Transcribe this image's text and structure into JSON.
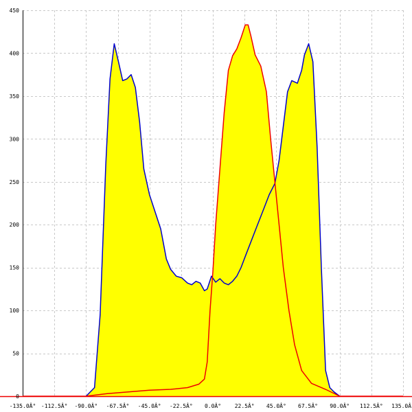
{
  "chart_data": {
    "type": "area",
    "title": "",
    "xlabel": "",
    "ylabel": "",
    "xlim": [
      -135,
      135
    ],
    "ylim": [
      0,
      450
    ],
    "grid": true,
    "x_ticks": [
      -135,
      -112.5,
      -90,
      -67.5,
      -45,
      -22.5,
      0,
      22.5,
      45,
      67.5,
      90,
      112.5,
      135
    ],
    "x_tick_labels": [
      "-135.0Â°",
      "-112.5Â°",
      "-90.0Â°",
      "-67.5Â°",
      "-45.0Â°",
      "-22.5Â°",
      "0.0Â°",
      "22.5Â°",
      "45.0Â°",
      "67.5Â°",
      "90.0Â°",
      "112.5Â°",
      "135.0Â°"
    ],
    "y_ticks": [
      0,
      50,
      100,
      150,
      200,
      250,
      300,
      350,
      400,
      450
    ],
    "y_tick_labels": [
      "0",
      "50",
      "100",
      "150",
      "200",
      "250",
      "300",
      "350",
      "400",
      "450"
    ],
    "fill_color": "#ffff00",
    "series": [
      {
        "color": "#0000cc",
        "points": [
          [
            -90,
            0
          ],
          [
            -84,
            10
          ],
          [
            -80,
            95
          ],
          [
            -76,
            270
          ],
          [
            -73,
            370
          ],
          [
            -70,
            411
          ],
          [
            -67,
            390
          ],
          [
            -64,
            368
          ],
          [
            -61,
            370
          ],
          [
            -58,
            375
          ],
          [
            -55,
            360
          ],
          [
            -52,
            320
          ],
          [
            -49,
            265
          ],
          [
            -45,
            235
          ],
          [
            -41,
            215
          ],
          [
            -37,
            195
          ],
          [
            -33,
            160
          ],
          [
            -30,
            148
          ],
          [
            -26,
            140
          ],
          [
            -22,
            138
          ],
          [
            -18,
            132
          ],
          [
            -15,
            130
          ],
          [
            -12,
            134
          ],
          [
            -9,
            132
          ],
          [
            -6,
            123
          ],
          [
            -4,
            125
          ],
          [
            -1,
            140
          ],
          [
            2,
            133
          ],
          [
            5,
            137
          ],
          [
            8,
            132
          ],
          [
            11,
            130
          ],
          [
            14,
            134
          ],
          [
            17,
            140
          ],
          [
            20,
            150
          ],
          [
            23,
            163
          ],
          [
            27,
            180
          ],
          [
            31,
            197
          ],
          [
            36,
            218
          ],
          [
            40,
            235
          ],
          [
            44,
            248
          ],
          [
            47,
            275
          ],
          [
            50,
            315
          ],
          [
            53,
            355
          ],
          [
            56,
            368
          ],
          [
            60,
            365
          ],
          [
            63,
            380
          ],
          [
            65,
            398
          ],
          [
            68,
            411
          ],
          [
            71,
            390
          ],
          [
            74,
            290
          ],
          [
            77,
            150
          ],
          [
            80,
            30
          ],
          [
            83,
            10
          ],
          [
            86,
            5
          ],
          [
            90,
            0
          ]
        ]
      },
      {
        "color": "#ee0000",
        "points": [
          [
            -135,
            0
          ],
          [
            -90,
            0
          ],
          [
            -75,
            3
          ],
          [
            -60,
            5
          ],
          [
            -45,
            7
          ],
          [
            -30,
            8
          ],
          [
            -18,
            10
          ],
          [
            -10,
            14
          ],
          [
            -6,
            20
          ],
          [
            -4,
            40
          ],
          [
            -2,
            100
          ],
          [
            0,
            145
          ],
          [
            2,
            200
          ],
          [
            5,
            265
          ],
          [
            8,
            330
          ],
          [
            11,
            380
          ],
          [
            14,
            397
          ],
          [
            17,
            405
          ],
          [
            20,
            418
          ],
          [
            23,
            433
          ],
          [
            25,
            433
          ],
          [
            27,
            420
          ],
          [
            30,
            398
          ],
          [
            34,
            385
          ],
          [
            38,
            355
          ],
          [
            41,
            300
          ],
          [
            44,
            250
          ],
          [
            47,
            200
          ],
          [
            50,
            150
          ],
          [
            54,
            100
          ],
          [
            58,
            60
          ],
          [
            63,
            30
          ],
          [
            70,
            15
          ],
          [
            80,
            8
          ],
          [
            90,
            0
          ],
          [
            135,
            0
          ]
        ]
      }
    ]
  }
}
